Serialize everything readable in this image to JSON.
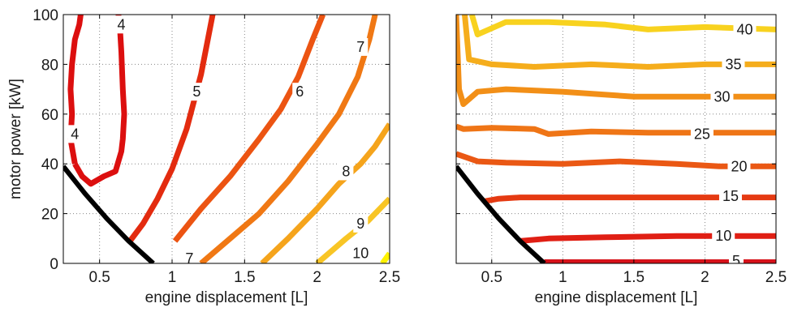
{
  "chart_data": [
    {
      "type": "contour",
      "xlabel": "engine displacement [L]",
      "ylabel": "motor power [kW]",
      "xlim": [
        0.25,
        2.5
      ],
      "ylim": [
        0,
        100
      ],
      "xticks": [
        "0.5",
        "1",
        "1.5",
        "2",
        "2.5"
      ],
      "xtick_values": [
        0.5,
        1,
        1.5,
        2,
        2.5
      ],
      "yticks": [
        "0",
        "20",
        "40",
        "60",
        "80",
        "100"
      ],
      "ytick_values": [
        0,
        20,
        40,
        60,
        80,
        100
      ],
      "grid": true,
      "boundary": {
        "color": "#000000",
        "points": [
          [
            0.25,
            39
          ],
          [
            0.4,
            28
          ],
          [
            0.55,
            18
          ],
          [
            0.7,
            9
          ],
          [
            0.87,
            0
          ]
        ]
      },
      "series": [
        {
          "level": "4",
          "color": "#dc0f0f",
          "label_at": [
            [
              0.33,
              52
            ],
            [
              0.65,
              96
            ]
          ],
          "points": [
            [
              0.33,
              40
            ],
            [
              0.3,
              50
            ],
            [
              0.31,
              60
            ],
            [
              0.3,
              70
            ],
            [
              0.31,
              80
            ],
            [
              0.33,
              90
            ],
            [
              0.36,
              96
            ],
            [
              0.37,
              100
            ],
            null,
            [
              0.63,
              100
            ],
            [
              0.64,
              95
            ],
            [
              0.65,
              85
            ],
            [
              0.66,
              70
            ],
            [
              0.67,
              60
            ],
            [
              0.66,
              50
            ],
            [
              0.65,
              45
            ],
            [
              0.61,
              37
            ],
            [
              0.53,
              35
            ],
            [
              0.44,
              32
            ],
            [
              0.38,
              35
            ],
            [
              0.33,
              40
            ]
          ]
        },
        {
          "level": "5",
          "color": "#e32b0f",
          "label_at": [
            [
              1.17,
              69
            ]
          ],
          "points": [
            [
              0.71,
              9
            ],
            [
              0.8,
              16
            ],
            [
              0.9,
              26
            ],
            [
              1.0,
              38
            ],
            [
              1.1,
              54
            ],
            [
              1.2,
              76
            ],
            [
              1.28,
              100
            ]
          ]
        },
        {
          "level": "6",
          "color": "#ec5412",
          "label_at": [
            [
              1.88,
              69
            ]
          ],
          "points": [
            [
              1.02,
              9
            ],
            [
              1.2,
              22
            ],
            [
              1.4,
              35
            ],
            [
              1.6,
              50
            ],
            [
              1.75,
              62
            ],
            [
              1.87,
              75
            ],
            [
              1.97,
              90
            ],
            [
              2.04,
              100
            ]
          ]
        },
        {
          "level": "7",
          "color": "#f07814",
          "label_at": [
            [
              1.12,
              2
            ],
            [
              2.3,
              87
            ]
          ],
          "points": [
            [
              1.2,
              0
            ],
            [
              1.4,
              10
            ],
            [
              1.6,
              20
            ],
            [
              1.8,
              33
            ],
            [
              2.0,
              48
            ],
            [
              2.15,
              60
            ],
            [
              2.28,
              75
            ],
            [
              2.36,
              90
            ],
            [
              2.4,
              100
            ]
          ]
        },
        {
          "level": "8",
          "color": "#f5a41c",
          "label_at": [
            [
              2.2,
              37
            ]
          ],
          "points": [
            [
              1.62,
              0
            ],
            [
              1.8,
              10
            ],
            [
              2.0,
              22
            ],
            [
              2.15,
              32
            ],
            [
              2.3,
              40
            ],
            [
              2.4,
              47
            ],
            [
              2.5,
              56
            ]
          ]
        },
        {
          "level": "9",
          "color": "#f8c525",
          "label_at": [
            [
              2.3,
              16
            ]
          ],
          "points": [
            [
              2.0,
              0
            ],
            [
              2.2,
              10
            ],
            [
              2.35,
              17
            ],
            [
              2.5,
              26
            ]
          ]
        },
        {
          "level": "10",
          "color": "#fff200",
          "label_at": [
            [
              2.3,
              4
            ]
          ],
          "points": [
            [
              2.45,
              0
            ],
            [
              2.5,
              4
            ]
          ]
        }
      ]
    },
    {
      "type": "contour",
      "xlabel": "engine displacement [L]",
      "ylabel": "",
      "xlim": [
        0.25,
        2.5
      ],
      "ylim": [
        0,
        100
      ],
      "xticks": [
        "0.5",
        "1",
        "1.5",
        "2",
        "2.5"
      ],
      "xtick_values": [
        0.5,
        1,
        1.5,
        2,
        2.5
      ],
      "yticks": [],
      "ytick_values": [
        0,
        20,
        40,
        60,
        80,
        100
      ],
      "grid": true,
      "boundary": {
        "color": "#000000",
        "points": [
          [
            0.25,
            39
          ],
          [
            0.4,
            28
          ],
          [
            0.55,
            18
          ],
          [
            0.7,
            9
          ],
          [
            0.87,
            0
          ]
        ]
      },
      "series": [
        {
          "level": "5",
          "color": "#d7121a",
          "label_at": [
            [
              2.22,
              1
            ]
          ],
          "points": [
            [
              0.87,
              0.5
            ],
            [
              1.5,
              0.5
            ],
            [
              2.0,
              0.5
            ],
            [
              2.5,
              0.5
            ]
          ]
        },
        {
          "level": "10",
          "color": "#e01f14",
          "label_at": [
            [
              2.13,
              11
            ]
          ],
          "points": [
            [
              0.7,
              9
            ],
            [
              0.9,
              10
            ],
            [
              1.3,
              10.5
            ],
            [
              1.8,
              11
            ],
            [
              2.1,
              11
            ],
            [
              2.5,
              11
            ]
          ]
        },
        {
          "level": "15",
          "color": "#e53a12",
          "label_at": [
            [
              2.18,
              27
            ]
          ],
          "points": [
            [
              0.45,
              25
            ],
            [
              0.55,
              26
            ],
            [
              0.7,
              26.5
            ],
            [
              1.2,
              26.5
            ],
            [
              1.8,
              26.5
            ],
            [
              2.5,
              26.5
            ]
          ]
        },
        {
          "level": "20",
          "color": "#ea5814",
          "label_at": [
            [
              2.24,
              39
            ]
          ],
          "points": [
            [
              0.25,
              44
            ],
            [
              0.4,
              41
            ],
            [
              0.6,
              40.5
            ],
            [
              1.0,
              40
            ],
            [
              1.4,
              41
            ],
            [
              1.8,
              40
            ],
            [
              2.1,
              39
            ],
            [
              2.5,
              39
            ]
          ]
        },
        {
          "level": "25",
          "color": "#ef7516",
          "label_at": [
            [
              1.98,
              52
            ]
          ],
          "points": [
            [
              0.25,
              55
            ],
            [
              0.3,
              54
            ],
            [
              0.5,
              54.5
            ],
            [
              0.8,
              54
            ],
            [
              0.9,
              52
            ],
            [
              1.2,
              53
            ],
            [
              1.6,
              52.5
            ],
            [
              2.0,
              52.5
            ],
            [
              2.5,
              52.5
            ]
          ]
        },
        {
          "level": "30",
          "color": "#f28f17",
          "label_at": [
            [
              2.12,
              67
            ]
          ],
          "points": [
            [
              0.25,
              100
            ],
            [
              0.27,
              70
            ],
            [
              0.3,
              64
            ],
            [
              0.4,
              69
            ],
            [
              0.6,
              70
            ],
            [
              1.0,
              69
            ],
            [
              1.5,
              67
            ],
            [
              2.0,
              67
            ],
            [
              2.5,
              67
            ]
          ]
        },
        {
          "level": "35",
          "color": "#f5ad1c",
          "label_at": [
            [
              2.2,
              80
            ]
          ],
          "points": [
            [
              0.31,
              100
            ],
            [
              0.34,
              82
            ],
            [
              0.5,
              80
            ],
            [
              0.8,
              79
            ],
            [
              1.2,
              80
            ],
            [
              1.6,
              79
            ],
            [
              2.0,
              80
            ],
            [
              2.5,
              80
            ]
          ]
        },
        {
          "level": "40",
          "color": "#f8d21f",
          "label_at": [
            [
              2.28,
              94
            ]
          ],
          "points": [
            [
              0.36,
              100
            ],
            [
              0.4,
              92
            ],
            [
              0.6,
              97
            ],
            [
              0.9,
              97
            ],
            [
              1.3,
              96
            ],
            [
              1.6,
              94
            ],
            [
              2.0,
              95
            ],
            [
              2.5,
              94
            ]
          ]
        }
      ]
    }
  ]
}
